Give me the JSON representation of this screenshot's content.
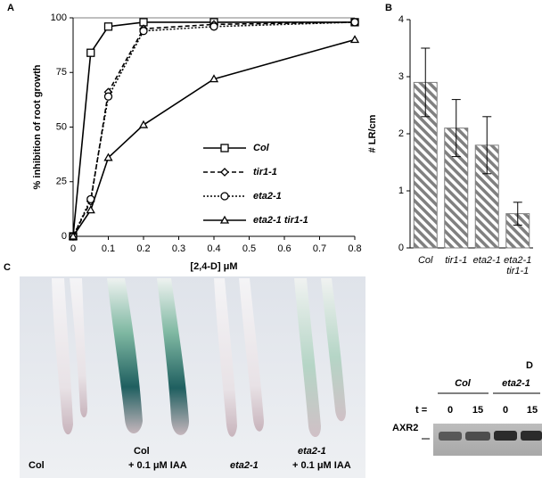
{
  "chart_data": [
    {
      "type": "line",
      "panel_label": "A",
      "x_label": "[2,4-D] μM",
      "y_label": "% inhibition of root growth",
      "x": [
        0,
        0.05,
        0.1,
        0.2,
        0.4,
        0.8
      ],
      "xlim": [
        0,
        0.8
      ],
      "xticks": [
        0,
        0.1,
        0.2,
        0.3,
        0.4,
        0.5,
        0.6,
        0.7,
        0.8
      ],
      "ylim": [
        0,
        100
      ],
      "yticks": [
        0,
        25,
        50,
        75,
        100
      ],
      "series": [
        {
          "name": "Col",
          "color": "#000000",
          "marker": "square",
          "dash": "solid",
          "values": [
            0,
            84,
            96,
            98,
            98,
            98
          ]
        },
        {
          "name": "tir1-1",
          "color": "#000000",
          "marker": "diamond",
          "dash": "dashed",
          "values": [
            0,
            16,
            66,
            95,
            97,
            98
          ]
        },
        {
          "name": "eta2-1",
          "color": "#000000",
          "marker": "circle",
          "dash": "dotted",
          "values": [
            0,
            17,
            64,
            94,
            96,
            98
          ]
        },
        {
          "name": "eta2-1 tir1-1",
          "color": "#000000",
          "marker": "triangle",
          "dash": "solid",
          "values": [
            0,
            12,
            36,
            51,
            72,
            90
          ]
        }
      ],
      "legend": "lower-right"
    },
    {
      "type": "bar",
      "panel_label": "B",
      "y_label": "# LR/cm",
      "categories": [
        "Col",
        "tir1-1",
        "eta2-1",
        "eta2-1 tir1-1"
      ],
      "values": [
        2.9,
        2.1,
        1.8,
        0.6
      ],
      "errors": [
        0.6,
        0.5,
        0.5,
        0.2
      ],
      "color": "#808080",
      "hatch": true,
      "ylim": [
        0,
        4
      ],
      "yticks": [
        0,
        1,
        2,
        3,
        4
      ]
    }
  ],
  "panels": {
    "C": {
      "label": "C",
      "captions": [
        [
          "Col"
        ],
        [
          "Col",
          "+ 0.1 μM IAA"
        ],
        [
          "eta2-1"
        ],
        [
          "eta2-1",
          "+ 0.1 μM IAA"
        ]
      ]
    },
    "D": {
      "label": "D",
      "groups": [
        "Col",
        "eta2-1"
      ],
      "time_label": "t =",
      "times": [
        "0",
        "15",
        "0",
        "15"
      ],
      "band_label": "AXR2"
    }
  }
}
